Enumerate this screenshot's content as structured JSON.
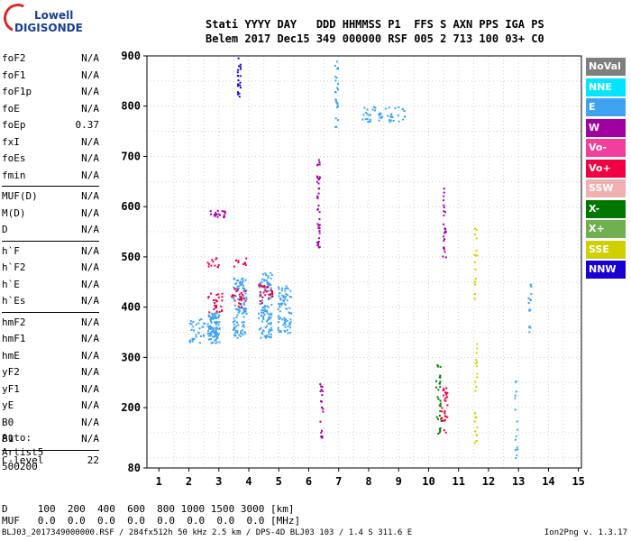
{
  "logo": {
    "line1": "Lowell",
    "line2": "DIGISONDE"
  },
  "header": {
    "labels": "Stati YYYY DAY   DDD HHMMSS P1  FFS S AXN PPS IGA PS",
    "values": "Belem 2017 Dec15 349 000000 RSF 005 2 713 100 03+ C0"
  },
  "params": [
    {
      "name": "foF2",
      "value": "N/A"
    },
    {
      "name": "foF1",
      "value": "N/A"
    },
    {
      "name": "foF1p",
      "value": "N/A"
    },
    {
      "name": "foE",
      "value": "N/A"
    },
    {
      "name": "foEp",
      "value": "0.37"
    },
    {
      "name": "fxI",
      "value": "N/A"
    },
    {
      "name": "foEs",
      "value": "N/A"
    },
    {
      "name": "fmin",
      "value": "N/A"
    },
    {
      "sep": true
    },
    {
      "name": "MUF(D)",
      "value": "N/A"
    },
    {
      "name": "M(D)",
      "value": "N/A"
    },
    {
      "name": "D",
      "value": "N/A"
    },
    {
      "sep": true
    },
    {
      "name": "h`F",
      "value": "N/A"
    },
    {
      "name": "h`F2",
      "value": "N/A"
    },
    {
      "name": "h`E",
      "value": "N/A"
    },
    {
      "name": "h`Es",
      "value": "N/A"
    },
    {
      "sep": true
    },
    {
      "name": "hmF2",
      "value": "N/A"
    },
    {
      "name": "hmF1",
      "value": "N/A"
    },
    {
      "name": "hmE",
      "value": "N/A"
    },
    {
      "name": "yF2",
      "value": "N/A"
    },
    {
      "name": "yF1",
      "value": "N/A"
    },
    {
      "name": "yE",
      "value": "N/A"
    },
    {
      "name": "B0",
      "value": "N/A"
    },
    {
      "name": "B1",
      "value": "N/A"
    },
    {
      "sep": true
    },
    {
      "name": "C-level",
      "value": "22"
    }
  ],
  "auto": {
    "line1": "Auto:",
    "line2": "Artist5",
    "line3": "500200"
  },
  "legend": [
    {
      "label": "NoVal",
      "color": "#7f7f7f"
    },
    {
      "label": "NNE",
      "color": "#00e5ff"
    },
    {
      "label": "E",
      "color": "#3ea2f0"
    },
    {
      "label": "W",
      "color": "#a000a0"
    },
    {
      "label": "Vo-",
      "color": "#f0409c"
    },
    {
      "label": "Vo+",
      "color": "#f00040"
    },
    {
      "label": "SSW",
      "color": "#f0b0b0"
    },
    {
      "label": "X-",
      "color": "#007800"
    },
    {
      "label": "X+",
      "color": "#70b050"
    },
    {
      "label": "SSE",
      "color": "#d0d000"
    },
    {
      "label": "NNW",
      "color": "#1800d0"
    }
  ],
  "dtable": {
    "row1": "D     100  200  400  600  800 1000 1500 3000 [km]",
    "row2": "MUF   0.0  0.0  0.0  0.0  0.0  0.0  0.0  0.0 [MHz]"
  },
  "footer": "BLJ03_2017349000000.RSF / 284fx512h 50 kHz 2.5 km / DPS-4D BLJ03 103 / 1.4 S 311.6 E",
  "version": "Ion2Png v. 1.3.17",
  "chart_data": {
    "type": "scatter",
    "xlim": [
      0.6,
      15.1
    ],
    "ylim": [
      80,
      900
    ],
    "xticks": [
      1,
      2,
      3,
      4,
      5,
      6,
      7,
      8,
      9,
      10,
      11,
      12,
      13,
      14,
      15
    ],
    "yticks": [
      200,
      300,
      400,
      500,
      600,
      700,
      800,
      900
    ],
    "yticks_labeled": [
      80,
      200,
      300,
      400,
      500,
      600,
      700,
      800,
      900
    ],
    "grid": true,
    "clusters": [
      {
        "x": [
          2.6,
          3.0
        ],
        "y": [
          330,
          390
        ],
        "color": "#3ea2f0",
        "n": 110
      },
      {
        "x": [
          3.45,
          3.9
        ],
        "y": [
          340,
          460
        ],
        "color": "#3ea2f0",
        "n": 110
      },
      {
        "x": [
          4.3,
          4.75
        ],
        "y": [
          340,
          470
        ],
        "color": "#3ea2f0",
        "n": 120
      },
      {
        "x": [
          4.95,
          5.4
        ],
        "y": [
          350,
          450
        ],
        "color": "#3ea2f0",
        "n": 80
      },
      {
        "x": [
          2.0,
          2.5
        ],
        "y": [
          330,
          380
        ],
        "color": "#3ea2f0",
        "n": 30
      },
      {
        "x": [
          2.6,
          3.1
        ],
        "y": [
          390,
          430
        ],
        "color": "#f00040",
        "n": 25
      },
      {
        "x": [
          3.4,
          3.9
        ],
        "y": [
          400,
          440
        ],
        "color": "#f00040",
        "n": 25
      },
      {
        "x": [
          4.3,
          4.8
        ],
        "y": [
          410,
          450
        ],
        "color": "#f00040",
        "n": 25
      },
      {
        "x": [
          2.6,
          3.1
        ],
        "y": [
          480,
          500
        ],
        "color": "#f00040",
        "n": 12
      },
      {
        "x": [
          3.4,
          3.9
        ],
        "y": [
          480,
          500
        ],
        "color": "#f00040",
        "n": 10
      },
      {
        "x": [
          2.6,
          3.2
        ],
        "y": [
          580,
          595
        ],
        "color": "#a000a0",
        "n": 18
      },
      {
        "x": [
          3.6,
          3.7
        ],
        "y": [
          820,
          900
        ],
        "color": "#1800d0",
        "n": 20
      },
      {
        "x": [
          6.25,
          6.35
        ],
        "y": [
          520,
          700
        ],
        "color": "#a000a0",
        "n": 40
      },
      {
        "x": [
          7.75,
          9.2
        ],
        "y": [
          770,
          800
        ],
        "color": "#3ea2f0",
        "n": 50
      },
      {
        "x": [
          10.2,
          10.4
        ],
        "y": [
          150,
          300
        ],
        "color": "#007800",
        "n": 30
      },
      {
        "x": [
          10.4,
          10.6
        ],
        "y": [
          150,
          250
        ],
        "color": "#f00040",
        "n": 30
      },
      {
        "x": [
          10.45,
          10.55
        ],
        "y": [
          500,
          650
        ],
        "color": "#a000a0",
        "n": 25
      },
      {
        "x": [
          11.5,
          11.6
        ],
        "y": [
          130,
          560
        ],
        "color": "#d0d000",
        "n": 40
      },
      {
        "x": [
          13.3,
          13.4
        ],
        "y": [
          350,
          450
        ],
        "color": "#3ea2f0",
        "n": 15
      },
      {
        "x": [
          12.85,
          12.95
        ],
        "y": [
          100,
          260
        ],
        "color": "#3ea2f0",
        "n": 15
      },
      {
        "x": [
          6.85,
          6.95
        ],
        "y": [
          760,
          900
        ],
        "color": "#3ea2f0",
        "n": 25
      },
      {
        "x": [
          6.35,
          6.45
        ],
        "y": [
          140,
          250
        ],
        "color": "#a000a0",
        "n": 20
      }
    ]
  }
}
